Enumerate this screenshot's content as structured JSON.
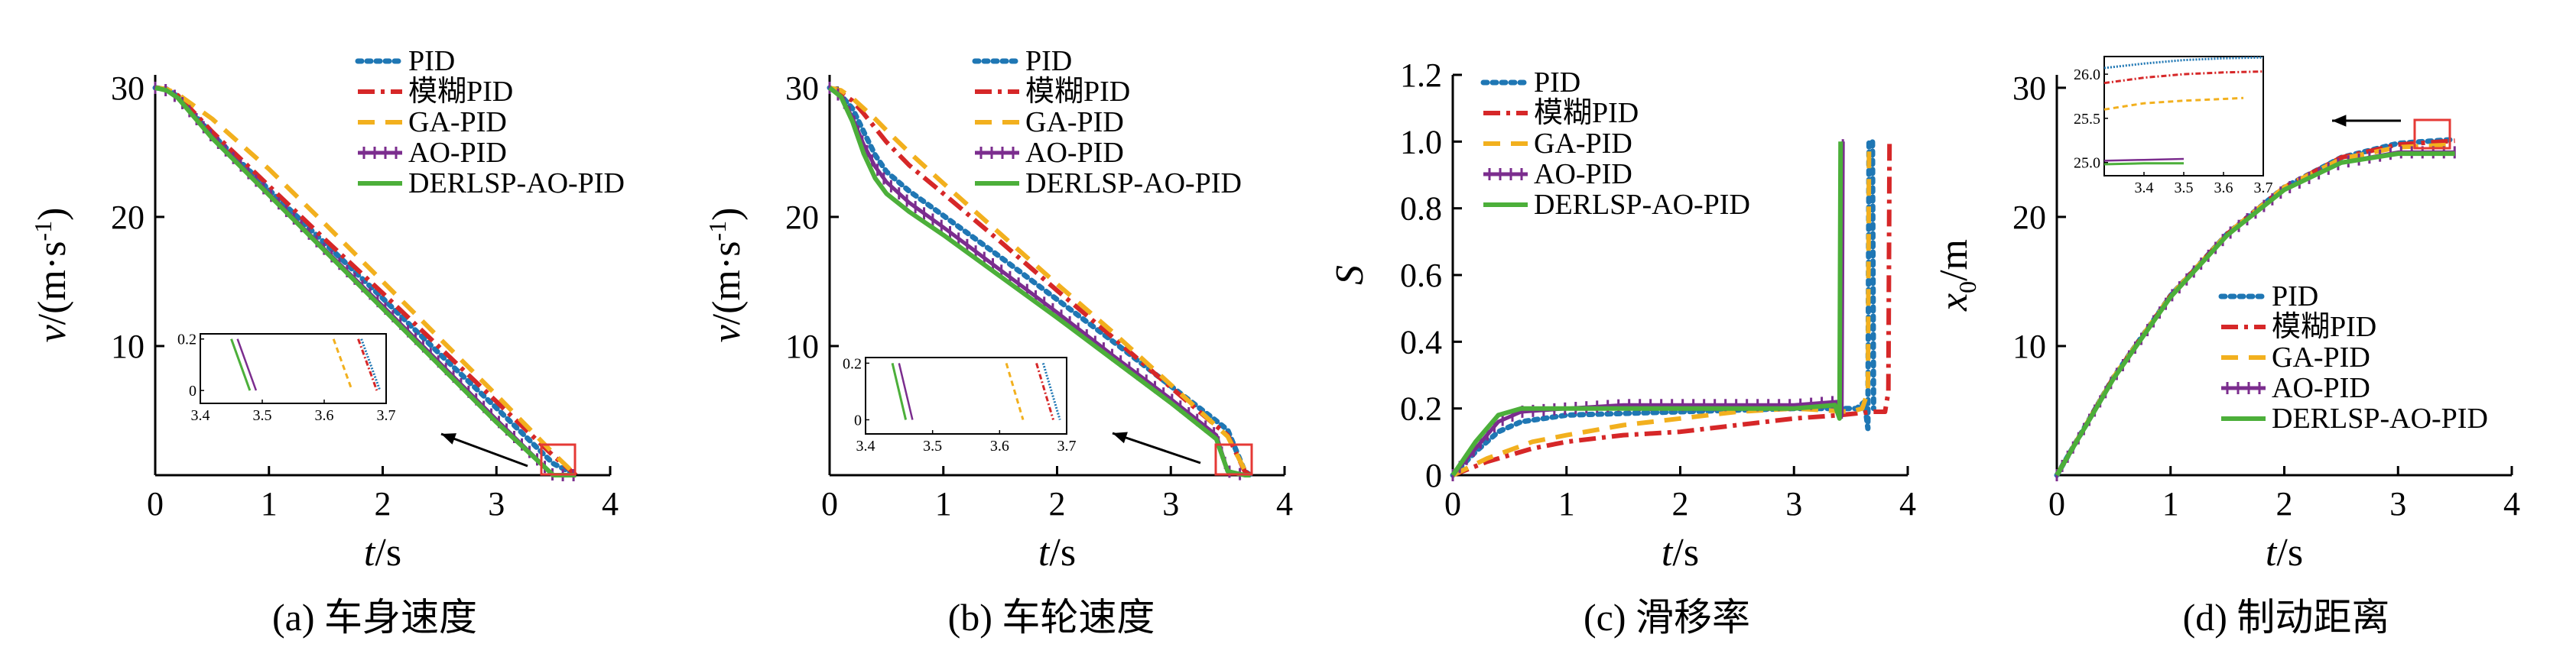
{
  "legend": [
    "PID",
    "模糊PID",
    "GA-PID",
    "AO-PID",
    "DERLSP-AO-PID"
  ],
  "colors": {
    "PID": "#1f77b4",
    "模糊PID": "#d62728",
    "GA-PID": "#f2b01e",
    "AO-PID": "#7b2d8e",
    "DERLSP-AO-PID": "#4caf3a",
    "zoom_box": "#e53935"
  },
  "chart_data": [
    {
      "type": "line",
      "caption": "(a) 车身速度",
      "xlabel_italic": "t",
      "xlabel_unit": "/s",
      "ylabel": "v/(m·s",
      "ylabel_sup": "-1",
      "ylabel_close": ")",
      "xlim": [
        0,
        4
      ],
      "ylim": [
        0,
        31
      ],
      "xticks": [
        "0",
        "1",
        "2",
        "3",
        "4"
      ],
      "yticks": [
        "10",
        "20",
        "30"
      ],
      "x": [
        0,
        0.1,
        0.2,
        0.5,
        1.0,
        1.5,
        2.0,
        2.5,
        3.0,
        3.5,
        3.7
      ],
      "series": [
        {
          "name": "PID",
          "values": [
            30,
            29.9,
            29.3,
            26.4,
            22.1,
            17.9,
            13.7,
            9.4,
            5.2,
            0.9,
            0.0
          ]
        },
        {
          "name": "模糊PID",
          "values": [
            30,
            29.9,
            29.4,
            26.6,
            22.4,
            18.2,
            14.1,
            9.9,
            5.7,
            1.5,
            0.0
          ]
        },
        {
          "name": "GA-PID",
          "values": [
            30,
            29.9,
            29.5,
            27.6,
            23.7,
            19.4,
            15.0,
            10.6,
            6.2,
            1.7,
            0.0
          ]
        },
        {
          "name": "AO-PID",
          "values": [
            30,
            29.8,
            29.2,
            26.2,
            21.8,
            17.4,
            13.1,
            8.7,
            4.3,
            0.0,
            0.0
          ]
        },
        {
          "name": "DERLSP-AO-PID",
          "values": [
            30,
            29.8,
            29.2,
            26.1,
            21.7,
            17.3,
            12.9,
            8.5,
            4.1,
            0.0,
            0.0
          ]
        }
      ],
      "inset": {
        "xlim": [
          3.4,
          3.7
        ],
        "ylim": [
          -0.05,
          0.22
        ],
        "xticks": [
          "3.4",
          "3.5",
          "3.6",
          "3.7"
        ],
        "yticks": [
          "0",
          "0.2"
        ],
        "series": [
          {
            "name": "PID",
            "x": [
              3.66,
              3.69
            ],
            "y": [
              0.2,
              0.0
            ]
          },
          {
            "name": "模糊PID",
            "x": [
              3.655,
              3.685
            ],
            "y": [
              0.2,
              0.0
            ]
          },
          {
            "name": "GA-PID",
            "x": [
              3.615,
              3.645
            ],
            "y": [
              0.2,
              0.0
            ]
          },
          {
            "name": "AO-PID",
            "x": [
              3.46,
              3.49
            ],
            "y": [
              0.2,
              0.0
            ]
          },
          {
            "name": "DERLSP-AO-PID",
            "x": [
              3.45,
              3.48
            ],
            "y": [
              0.2,
              0.0
            ]
          }
        ]
      }
    },
    {
      "type": "line",
      "caption": "(b) 车轮速度",
      "xlabel_italic": "t",
      "xlabel_unit": "/s",
      "ylabel": "v/(m·s",
      "ylabel_sup": "-1",
      "ylabel_close": ")",
      "xlim": [
        0,
        4
      ],
      "ylim": [
        0,
        31
      ],
      "xticks": [
        "0",
        "1",
        "2",
        "3",
        "4"
      ],
      "yticks": [
        "10",
        "20",
        "30"
      ],
      "x": [
        0,
        0.1,
        0.2,
        0.3,
        0.4,
        0.5,
        0.7,
        1.0,
        1.5,
        2.0,
        2.5,
        3.0,
        3.4,
        3.5,
        3.65,
        3.7
      ],
      "series": [
        {
          "name": "PID",
          "values": [
            30,
            29.4,
            28.4,
            26.6,
            24.8,
            23.5,
            22.0,
            20.1,
            16.9,
            13.6,
            10.3,
            6.9,
            4.2,
            3.5,
            0.3,
            0.0
          ]
        },
        {
          "name": "模糊PID",
          "values": [
            30,
            29.6,
            29.0,
            28.0,
            26.9,
            25.8,
            24.0,
            21.8,
            18.1,
            14.3,
            10.6,
            6.8,
            3.8,
            3.1,
            0.3,
            0.0
          ]
        },
        {
          "name": "GA-PID",
          "values": [
            30,
            29.8,
            29.2,
            28.4,
            27.6,
            26.7,
            25.0,
            22.6,
            18.7,
            14.8,
            11.0,
            7.0,
            3.8,
            3.0,
            0.4,
            0.0
          ]
        },
        {
          "name": "AO-PID",
          "values": [
            30,
            29.3,
            27.7,
            25.6,
            23.9,
            22.7,
            21.1,
            19.2,
            15.9,
            12.6,
            9.2,
            5.9,
            3.1,
            0.3,
            0.0,
            0.0
          ]
        },
        {
          "name": "DERLSP-AO-PID",
          "values": [
            30,
            29.3,
            27.4,
            24.9,
            23.0,
            21.8,
            20.4,
            18.6,
            15.4,
            12.2,
            8.9,
            5.6,
            2.8,
            0.3,
            0.0,
            0.0
          ]
        }
      ],
      "inset": {
        "xlim": [
          3.4,
          3.7
        ],
        "ylim": [
          -0.05,
          0.22
        ],
        "xticks": [
          "3.4",
          "3.5",
          "3.6",
          "3.7"
        ],
        "yticks": [
          "0",
          "0.2"
        ],
        "series": [
          {
            "name": "PID",
            "x": [
              3.665,
              3.69
            ],
            "y": [
              0.2,
              0.0
            ]
          },
          {
            "name": "模糊PID",
            "x": [
              3.655,
              3.68
            ],
            "y": [
              0.2,
              0.0
            ]
          },
          {
            "name": "GA-PID",
            "x": [
              3.61,
              3.635
            ],
            "y": [
              0.2,
              0.0
            ]
          },
          {
            "name": "AO-PID",
            "x": [
              3.45,
              3.47
            ],
            "y": [
              0.2,
              0.0
            ]
          },
          {
            "name": "DERLSP-AO-PID",
            "x": [
              3.44,
              3.46
            ],
            "y": [
              0.2,
              0.0
            ]
          }
        ]
      }
    },
    {
      "type": "line",
      "caption": "(c) 滑移率",
      "xlabel_italic": "t",
      "xlabel_unit": "/s",
      "ylabel": "S",
      "xlim": [
        0,
        4
      ],
      "ylim": [
        0,
        1.2
      ],
      "xticks": [
        "0",
        "1",
        "2",
        "3",
        "4"
      ],
      "yticks": [
        "0",
        "0.2",
        "0.4",
        "0.6",
        "0.8",
        "1.0",
        "1.2"
      ],
      "series": [
        {
          "name": "PID",
          "x": [
            0,
            0.2,
            0.4,
            0.6,
            1.0,
            2.0,
            3.0,
            3.55,
            3.62,
            3.65,
            3.66,
            3.69,
            3.7
          ],
          "y": [
            0,
            0.07,
            0.13,
            0.16,
            0.18,
            0.19,
            0.2,
            0.2,
            0.22,
            0.14,
            1.0,
            1.0,
            0.2
          ]
        },
        {
          "name": "模糊PID",
          "x": [
            0,
            0.3,
            0.7,
            1.0,
            1.5,
            2.0,
            2.5,
            3.0,
            3.4,
            3.7,
            3.8,
            3.83,
            3.84
          ],
          "y": [
            0,
            0.04,
            0.08,
            0.1,
            0.12,
            0.13,
            0.15,
            0.17,
            0.18,
            0.19,
            0.19,
            0.25,
            1.0
          ]
        },
        {
          "name": "GA-PID",
          "x": [
            0,
            0.3,
            0.7,
            1.0,
            1.5,
            2.0,
            2.5,
            3.0,
            3.5,
            3.6,
            3.65,
            3.66
          ],
          "y": [
            0,
            0.05,
            0.1,
            0.12,
            0.15,
            0.17,
            0.19,
            0.2,
            0.19,
            0.2,
            0.25,
            1.0
          ]
        },
        {
          "name": "AO-PID",
          "x": [
            0,
            0.2,
            0.4,
            0.6,
            1.0,
            1.5,
            2.0,
            3.0,
            3.38,
            3.42,
            3.43
          ],
          "y": [
            0,
            0.08,
            0.16,
            0.19,
            0.2,
            0.21,
            0.21,
            0.21,
            0.22,
            0.18,
            1.0
          ]
        },
        {
          "name": "DERLSP-AO-PID",
          "x": [
            0,
            0.2,
            0.4,
            0.6,
            1.0,
            1.5,
            2.0,
            3.0,
            3.36,
            3.4,
            3.41
          ],
          "y": [
            0,
            0.1,
            0.18,
            0.2,
            0.2,
            0.2,
            0.2,
            0.2,
            0.21,
            0.17,
            1.0
          ]
        }
      ]
    },
    {
      "type": "line",
      "caption": "(d) 制动距离",
      "xlabel_italic": "t",
      "xlabel_unit": "/s",
      "ylabel_italic": "x",
      "ylabel_sub": "0",
      "ylabel_unit": "/m",
      "xlim": [
        0,
        4
      ],
      "ylim": [
        0,
        31
      ],
      "xticks": [
        "0",
        "1",
        "2",
        "3",
        "4"
      ],
      "yticks": [
        "10",
        "20",
        "30"
      ],
      "x": [
        0,
        0.5,
        1.0,
        1.5,
        2.0,
        2.5,
        3.0,
        3.5
      ],
      "series": [
        {
          "name": "PID",
          "values": [
            0,
            7.6,
            13.9,
            18.7,
            22.3,
            24.6,
            25.7,
            26.0
          ]
        },
        {
          "name": "模糊PID",
          "values": [
            0,
            7.6,
            13.9,
            18.7,
            22.3,
            24.6,
            25.6,
            25.9
          ]
        },
        {
          "name": "GA-PID",
          "values": [
            0,
            7.6,
            13.9,
            18.7,
            22.3,
            24.5,
            25.4,
            25.6
          ]
        },
        {
          "name": "AO-PID",
          "values": [
            0,
            7.5,
            13.8,
            18.6,
            22.1,
            24.2,
            25.0,
            25.0
          ]
        },
        {
          "name": "DERLSP-AO-PID",
          "values": [
            0,
            7.5,
            13.8,
            18.6,
            22.1,
            24.2,
            24.9,
            24.9
          ]
        }
      ],
      "inset": {
        "xlim": [
          3.3,
          3.7
        ],
        "ylim": [
          24.85,
          26.2
        ],
        "xticks": [
          "3.4",
          "3.5",
          "3.6",
          "3.7"
        ],
        "yticks": [
          "25.0",
          "25.5",
          "26.0"
        ],
        "series": [
          {
            "name": "PID",
            "x": [
              3.3,
              3.4,
              3.5,
              3.6,
              3.7
            ],
            "y": [
              26.07,
              26.12,
              26.16,
              26.18,
              26.19
            ]
          },
          {
            "name": "模糊PID",
            "x": [
              3.3,
              3.4,
              3.5,
              3.6,
              3.7
            ],
            "y": [
              25.9,
              25.96,
              26.0,
              26.02,
              26.03
            ]
          },
          {
            "name": "GA-PID",
            "x": [
              3.3,
              3.4,
              3.5,
              3.6,
              3.65
            ],
            "y": [
              25.6,
              25.67,
              25.7,
              25.72,
              25.73
            ]
          },
          {
            "name": "AO-PID",
            "x": [
              3.3,
              3.4,
              3.5
            ],
            "y": [
              25.02,
              25.03,
              25.04
            ]
          },
          {
            "name": "DERLSP-AO-PID",
            "x": [
              3.3,
              3.4,
              3.5
            ],
            "y": [
              24.98,
              24.99,
              24.99
            ]
          }
        ]
      }
    }
  ]
}
